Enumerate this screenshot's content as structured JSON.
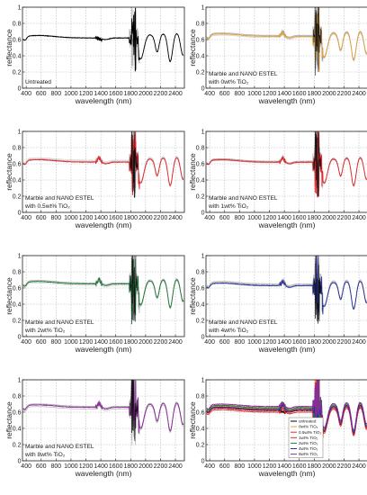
{
  "colors": {
    "untreated": "#000000",
    "0wt": "#e3a23a",
    "0.5wt": "#e8262b",
    "1wt": "#e8262b",
    "2wt": "#1f7a3a",
    "4wt": "#26329a",
    "8wt": "#8b2a9a",
    "grey": "#9a9a9a"
  },
  "chart_data": [
    {
      "type": "line",
      "xlabel": "wavelength (nm)",
      "ylabel": "reflectance",
      "xlim": [
        350,
        2520
      ],
      "ylim": [
        0,
        1
      ],
      "xticks": [
        "400",
        "600",
        "800",
        "1000",
        "1200",
        "1400",
        "1600",
        "1800",
        "2000",
        "2200",
        "2400"
      ],
      "yticks": [
        "0",
        "0.2",
        "0.4",
        "0.6",
        "0.8",
        "1"
      ],
      "grid": true,
      "annotation": [
        "Untreated"
      ],
      "series": [
        {
          "color_key": "untreated",
          "level": 0.62,
          "variant": "untreated"
        }
      ]
    },
    {
      "type": "line",
      "xlabel": "wavelength (nm)",
      "ylabel": "reflectance",
      "xlim": [
        350,
        2520
      ],
      "ylim": [
        0,
        1
      ],
      "xticks": [
        "400",
        "600",
        "800",
        "1000",
        "1200",
        "1400",
        "1600",
        "1800",
        "2000",
        "2200",
        "2400"
      ],
      "yticks": [
        "0",
        "0.2",
        "0.4",
        "0.6",
        "0.8",
        "1"
      ],
      "grid": true,
      "annotation": [
        "Marble and NANO ESTEL",
        "with 0wt% TiO₂"
      ],
      "series": [
        {
          "color_key": "0wt",
          "level": 0.64,
          "variant": "treated"
        }
      ]
    },
    {
      "type": "line",
      "xlabel": "wavelength (nm)",
      "ylabel": "reflectance",
      "xlim": [
        350,
        2520
      ],
      "ylim": [
        0,
        1
      ],
      "xticks": [
        "400",
        "600",
        "800",
        "1000",
        "1200",
        "1400",
        "1600",
        "1800",
        "2000",
        "2200",
        "2400"
      ],
      "yticks": [
        "0",
        "0.2",
        "0.4",
        "0.6",
        "0.8",
        "1"
      ],
      "grid": true,
      "annotation": [
        "Marble and NANO ESTEL",
        "with 0.5wt% TiO₂"
      ],
      "series": [
        {
          "color_key": "0.5wt",
          "level": 0.62,
          "variant": "treated"
        }
      ]
    },
    {
      "type": "line",
      "xlabel": "wavelength (nm)",
      "ylabel": "reflectance",
      "xlim": [
        350,
        2520
      ],
      "ylim": [
        0,
        1
      ],
      "xticks": [
        "400",
        "600",
        "800",
        "1000",
        "1200",
        "1400",
        "1600",
        "1800",
        "2000",
        "2200",
        "2400"
      ],
      "yticks": [
        "0",
        "0.2",
        "0.4",
        "0.6",
        "0.8",
        "1"
      ],
      "grid": true,
      "annotation": [
        "Marble and NANO ESTEL",
        "with 1wt% TiO₂"
      ],
      "series": [
        {
          "color_key": "1wt",
          "level": 0.62,
          "variant": "treated"
        }
      ]
    },
    {
      "type": "line",
      "xlabel": "wavelength (nm)",
      "ylabel": "reflectance",
      "xlim": [
        350,
        2520
      ],
      "ylim": [
        0,
        1
      ],
      "xticks": [
        "400",
        "600",
        "800",
        "1000",
        "1200",
        "1400",
        "1600",
        "1800",
        "2000",
        "2200",
        "2400"
      ],
      "yticks": [
        "0",
        "0.2",
        "0.4",
        "0.6",
        "0.8",
        "1"
      ],
      "grid": true,
      "annotation": [
        "Marble and NANO ESTEL",
        "with 2wt% TiO₂"
      ],
      "series": [
        {
          "color_key": "2wt",
          "level": 0.65,
          "variant": "treated"
        }
      ]
    },
    {
      "type": "line",
      "xlabel": "wavelength (nm)",
      "ylabel": "reflectance",
      "xlim": [
        350,
        2520
      ],
      "ylim": [
        0,
        1
      ],
      "xticks": [
        "400",
        "600",
        "800",
        "1000",
        "1200",
        "1400",
        "1600",
        "1800",
        "2000",
        "2200",
        "2400"
      ],
      "yticks": [
        "0",
        "0.2",
        "0.4",
        "0.6",
        "0.8",
        "1"
      ],
      "grid": true,
      "annotation": [
        "Marble and NANO ESTEL",
        "with 4wt% TiO₂"
      ],
      "series": [
        {
          "color_key": "4wt",
          "level": 0.63,
          "variant": "treated"
        }
      ]
    },
    {
      "type": "line",
      "xlabel": "wavelength (nm)",
      "ylabel": "reflectance",
      "xlim": [
        350,
        2520
      ],
      "ylim": [
        0,
        1
      ],
      "xticks": [
        "400",
        "600",
        "800",
        "1000",
        "1200",
        "1400",
        "1600",
        "1800",
        "2000",
        "2200",
        "2400"
      ],
      "yticks": [
        "0",
        "0.2",
        "0.4",
        "0.6",
        "0.8",
        "1"
      ],
      "grid": true,
      "annotation": [
        "Marble and NANO ESTEL",
        "with 8wt% TiO₂"
      ],
      "series": [
        {
          "color_key": "8wt",
          "level": 0.66,
          "variant": "treated"
        }
      ]
    },
    {
      "type": "line",
      "xlabel": "wavelength (nm)",
      "ylabel": "reflectance",
      "xlim": [
        350,
        2520
      ],
      "ylim": [
        0,
        1
      ],
      "xticks": [
        "400",
        "600",
        "800",
        "1000",
        "1200",
        "1400",
        "1600",
        "1800",
        "2000",
        "2200",
        "2400"
      ],
      "yticks": [
        "0",
        "0.2",
        "0.4",
        "0.6",
        "0.8",
        "1"
      ],
      "grid": true,
      "annotation": [],
      "legend_position": "bottom-center",
      "series": [
        {
          "name": "untreated",
          "color_key": "untreated",
          "level": 0.62,
          "variant": "untreated"
        },
        {
          "name": "0wt% TiO₂",
          "color_key": "0wt",
          "level": 0.645,
          "variant": "treated"
        },
        {
          "name": "0.5wt% TiO₂",
          "color_key": "0.5wt",
          "level": 0.625,
          "variant": "treated"
        },
        {
          "name": "1wt% TiO₂",
          "color_key": "1wt",
          "level": 0.6,
          "variant": "treated"
        },
        {
          "name": "2wt% TiO₂",
          "color_key": "2wt",
          "level": 0.655,
          "variant": "treated"
        },
        {
          "name": "4wt% TiO₂",
          "color_key": "4wt",
          "level": 0.635,
          "variant": "treated"
        },
        {
          "name": "8wt% TiO₂",
          "color_key": "8wt",
          "level": 0.67,
          "variant": "treated"
        }
      ]
    }
  ]
}
